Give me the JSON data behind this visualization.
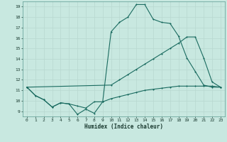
{
  "xlabel": "Humidex (Indice chaleur)",
  "bg_color": "#c8e8e0",
  "grid_color": "#b8d8d0",
  "line_color": "#1a6b60",
  "xlim": [
    -0.5,
    23.5
  ],
  "ylim": [
    8.5,
    19.5
  ],
  "yticks": [
    9,
    10,
    11,
    12,
    13,
    14,
    15,
    16,
    17,
    18,
    19
  ],
  "xticks": [
    0,
    1,
    2,
    3,
    4,
    5,
    6,
    7,
    8,
    9,
    10,
    11,
    12,
    13,
    14,
    15,
    16,
    17,
    18,
    19,
    20,
    21,
    22,
    23
  ],
  "line1_x": [
    0,
    1,
    2,
    3,
    4,
    5,
    6,
    7,
    8,
    9,
    10,
    11,
    12,
    13,
    14,
    15,
    16,
    17,
    18,
    19,
    20,
    21,
    22,
    23
  ],
  "line1_y": [
    11.3,
    10.5,
    10.1,
    9.4,
    9.8,
    9.7,
    8.7,
    9.2,
    8.8,
    9.9,
    16.6,
    17.5,
    18.0,
    19.2,
    19.2,
    17.8,
    17.5,
    17.4,
    16.2,
    14.1,
    12.8,
    11.5,
    11.3,
    11.3
  ],
  "line2_x": [
    0,
    10,
    11,
    12,
    13,
    14,
    15,
    16,
    17,
    18,
    19,
    20,
    21,
    22,
    23
  ],
  "line2_y": [
    11.3,
    11.5,
    12.0,
    12.5,
    13.0,
    13.5,
    14.0,
    14.5,
    15.0,
    15.5,
    16.1,
    16.1,
    14.1,
    11.8,
    11.3
  ],
  "line3_x": [
    0,
    1,
    2,
    3,
    4,
    5,
    6,
    7,
    8,
    9,
    10,
    11,
    12,
    13,
    14,
    15,
    16,
    17,
    18,
    19,
    20,
    21,
    22,
    23
  ],
  "line3_y": [
    11.3,
    10.5,
    10.1,
    9.4,
    9.8,
    9.7,
    9.5,
    9.3,
    9.9,
    9.9,
    10.2,
    10.4,
    10.6,
    10.8,
    11.0,
    11.1,
    11.2,
    11.3,
    11.4,
    11.4,
    11.4,
    11.4,
    11.4,
    11.3
  ]
}
